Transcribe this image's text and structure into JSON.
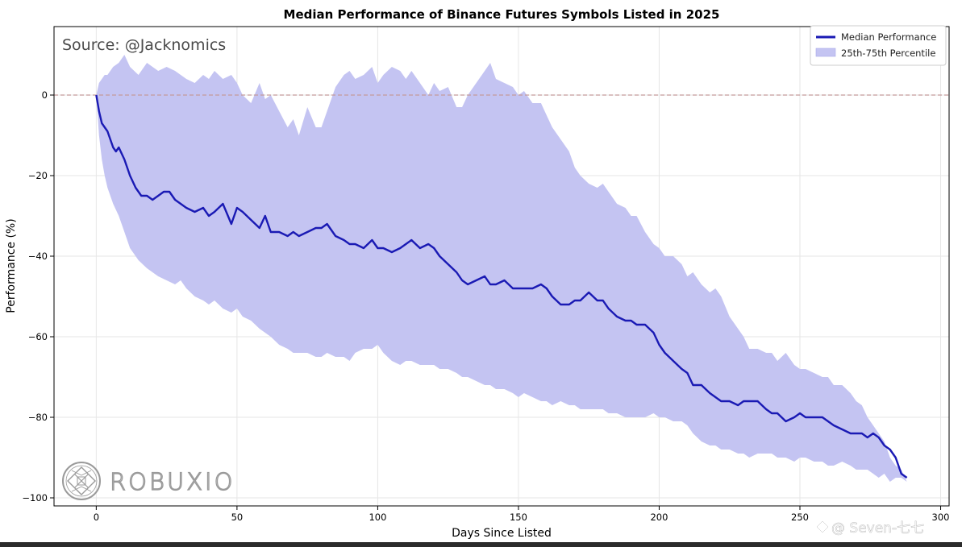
{
  "chart_data": {
    "type": "line",
    "title": "Median Performance of Binance Futures Symbols Listed in 2025",
    "xlabel": "Days Since Listed",
    "ylabel": "Performance (%)",
    "xlim": [
      -15,
      303
    ],
    "ylim": [
      -102,
      17
    ],
    "x_ticks": [
      0,
      50,
      100,
      150,
      200,
      250,
      300
    ],
    "y_ticks": [
      0,
      -20,
      -40,
      -60,
      -80,
      -100
    ],
    "grid": true,
    "legend_position": "top-right",
    "reference_line": {
      "y": 0,
      "style": "dashed",
      "color": "#c49a9a"
    },
    "series": [
      {
        "name": "Median Performance",
        "kind": "line",
        "color": "#1a1ab4",
        "x": [
          0,
          1,
          2,
          3,
          4,
          5,
          6,
          7,
          8,
          10,
          12,
          14,
          16,
          18,
          20,
          22,
          24,
          26,
          28,
          30,
          32,
          35,
          38,
          40,
          42,
          45,
          48,
          50,
          52,
          55,
          58,
          60,
          62,
          65,
          68,
          70,
          72,
          75,
          78,
          80,
          82,
          85,
          88,
          90,
          92,
          95,
          98,
          100,
          102,
          105,
          108,
          110,
          112,
          115,
          118,
          120,
          122,
          125,
          128,
          130,
          132,
          135,
          138,
          140,
          142,
          145,
          148,
          150,
          152,
          155,
          158,
          160,
          162,
          165,
          168,
          170,
          172,
          175,
          178,
          180,
          182,
          185,
          188,
          190,
          192,
          195,
          198,
          200,
          202,
          205,
          208,
          210,
          212,
          215,
          218,
          220,
          222,
          225,
          228,
          230,
          232,
          235,
          238,
          240,
          242,
          245,
          248,
          250,
          252,
          255,
          258,
          260,
          262,
          265,
          268,
          270,
          272,
          274,
          276,
          278,
          280,
          282,
          284,
          286,
          288
        ],
        "y": [
          0,
          -4,
          -7,
          -8,
          -9,
          -11,
          -13,
          -14,
          -13,
          -16,
          -20,
          -23,
          -25,
          -25,
          -26,
          -25,
          -24,
          -24,
          -26,
          -27,
          -28,
          -29,
          -28,
          -30,
          -29,
          -27,
          -32,
          -28,
          -29,
          -31,
          -33,
          -30,
          -34,
          -34,
          -35,
          -34,
          -35,
          -34,
          -33,
          -33,
          -32,
          -35,
          -36,
          -37,
          -37,
          -38,
          -36,
          -38,
          -38,
          -39,
          -38,
          -37,
          -36,
          -38,
          -37,
          -38,
          -40,
          -42,
          -44,
          -46,
          -47,
          -46,
          -45,
          -47,
          -47,
          -46,
          -48,
          -48,
          -48,
          -48,
          -47,
          -48,
          -50,
          -52,
          -52,
          -51,
          -51,
          -49,
          -51,
          -51,
          -53,
          -55,
          -56,
          -56,
          -57,
          -57,
          -59,
          -62,
          -64,
          -66,
          -68,
          -69,
          -72,
          -72,
          -74,
          -75,
          -76,
          -76,
          -77,
          -76,
          -76,
          -76,
          -78,
          -79,
          -79,
          -81,
          -80,
          -79,
          -80,
          -80,
          -80,
          -81,
          -82,
          -83,
          -84,
          -84,
          -84,
          -85,
          -84,
          -85,
          -87,
          -88,
          -90,
          -94,
          -95
        ]
      },
      {
        "name": "25th-75th Percentile",
        "kind": "band",
        "color": "#c4c4f2",
        "x": [
          0,
          1,
          2,
          3,
          4,
          5,
          6,
          8,
          10,
          12,
          15,
          18,
          20,
          22,
          25,
          28,
          30,
          32,
          35,
          38,
          40,
          42,
          45,
          48,
          50,
          52,
          55,
          58,
          60,
          62,
          65,
          68,
          70,
          72,
          75,
          78,
          80,
          82,
          85,
          88,
          90,
          92,
          95,
          98,
          100,
          102,
          105,
          108,
          110,
          112,
          115,
          118,
          120,
          122,
          125,
          128,
          130,
          132,
          135,
          138,
          140,
          142,
          145,
          148,
          150,
          152,
          155,
          158,
          160,
          162,
          165,
          168,
          170,
          172,
          175,
          178,
          180,
          182,
          185,
          188,
          190,
          192,
          195,
          198,
          200,
          202,
          205,
          208,
          210,
          212,
          215,
          218,
          220,
          222,
          225,
          228,
          230,
          232,
          235,
          238,
          240,
          242,
          245,
          248,
          250,
          252,
          255,
          258,
          260,
          262,
          265,
          268,
          270,
          272,
          274,
          276,
          278,
          280,
          282,
          284,
          286,
          288
        ],
        "lower": [
          0,
          -10,
          -16,
          -20,
          -23,
          -25,
          -27,
          -30,
          -34,
          -38,
          -41,
          -43,
          -44,
          -45,
          -46,
          -47,
          -46,
          -48,
          -50,
          -51,
          -52,
          -51,
          -53,
          -54,
          -53,
          -55,
          -56,
          -58,
          -59,
          -60,
          -62,
          -63,
          -64,
          -64,
          -64,
          -65,
          -65,
          -64,
          -65,
          -65,
          -66,
          -64,
          -63,
          -63,
          -62,
          -64,
          -66,
          -67,
          -66,
          -66,
          -67,
          -67,
          -67,
          -68,
          -68,
          -69,
          -70,
          -70,
          -71,
          -72,
          -72,
          -73,
          -73,
          -74,
          -75,
          -74,
          -75,
          -76,
          -76,
          -77,
          -76,
          -77,
          -77,
          -78,
          -78,
          -78,
          -78,
          -79,
          -79,
          -80,
          -80,
          -80,
          -80,
          -79,
          -80,
          -80,
          -81,
          -81,
          -82,
          -84,
          -86,
          -87,
          -87,
          -88,
          -88,
          -89,
          -89,
          -90,
          -89,
          -89,
          -89,
          -90,
          -90,
          -91,
          -90,
          -90,
          -91,
          -91,
          -92,
          -92,
          -91,
          -92,
          -93,
          -93,
          -93,
          -94,
          -95,
          -94,
          -96,
          -95,
          -95,
          -96
        ],
        "upper": [
          0,
          3,
          4,
          5,
          5,
          6,
          7,
          8,
          10,
          7,
          5,
          8,
          7,
          6,
          7,
          6,
          5,
          4,
          3,
          5,
          4,
          6,
          4,
          5,
          3,
          0,
          -2,
          3,
          -1,
          0,
          -4,
          -8,
          -6,
          -10,
          -3,
          -8,
          -8,
          -4,
          2,
          5,
          6,
          4,
          5,
          7,
          3,
          5,
          7,
          6,
          4,
          6,
          3,
          0,
          3,
          1,
          2,
          -3,
          -3,
          0,
          3,
          6,
          8,
          4,
          3,
          2,
          0,
          1,
          -2,
          -2,
          -5,
          -8,
          -11,
          -14,
          -18,
          -20,
          -22,
          -23,
          -22,
          -24,
          -27,
          -28,
          -30,
          -30,
          -34,
          -37,
          -38,
          -40,
          -40,
          -42,
          -45,
          -44,
          -47,
          -49,
          -48,
          -50,
          -55,
          -58,
          -60,
          -63,
          -63,
          -64,
          -64,
          -66,
          -64,
          -67,
          -68,
          -68,
          -69,
          -70,
          -70,
          -72,
          -72,
          -74,
          -76,
          -77,
          -80,
          -82,
          -84,
          -86,
          -90,
          -92,
          -93,
          -96
        ]
      }
    ]
  },
  "overlays": {
    "source_text": "Source: @Jacknomics",
    "logo_text": "ROBUXIO",
    "watermark_text": "@ Seven-七七"
  },
  "colors": {
    "median": "#1a1ab4",
    "band": "#c4c4f2",
    "grid": "#e6e6e6",
    "logo": "#9a9a9a",
    "watermark": "#ffffff"
  }
}
